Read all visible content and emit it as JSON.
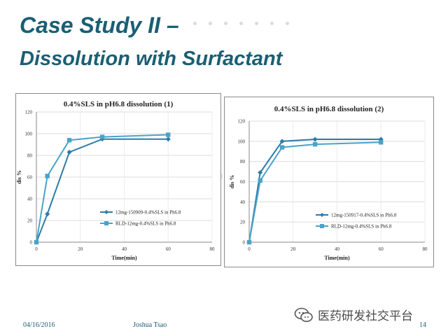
{
  "slide": {
    "title_line1": "Case Study II –",
    "title_line2": "Dissolution with Surfactant",
    "footer_date": "04/16/2016",
    "footer_author": "Joshua Tsao",
    "footer_page": "14",
    "watermark": "医药研发社交平台",
    "title_color": "#1a5f73"
  },
  "chart_data": [
    {
      "type": "line",
      "title": "0.4%SLS in pH6.8 dissolution (1)",
      "xlabel": "Time(min)",
      "ylabel": "dis %",
      "xlim": [
        0,
        80
      ],
      "ylim": [
        0,
        120
      ],
      "x_ticks": [
        0,
        20,
        40,
        60,
        80
      ],
      "y_ticks": [
        0,
        20,
        40,
        60,
        80,
        100,
        120
      ],
      "grid": true,
      "legend_position": "bottom-right",
      "series": [
        {
          "name": "12mg-150909-0.4%SLS in Ph6.8",
          "marker": "diamond",
          "color": "#2e7aa6",
          "x": [
            0,
            5,
            15,
            30,
            60
          ],
          "y": [
            0,
            26,
            83,
            95,
            95
          ]
        },
        {
          "name": "RLD-12mg-0.4%SLS in Ph6.8",
          "marker": "square",
          "color": "#4aa3c8",
          "x": [
            0,
            5,
            15,
            30,
            60
          ],
          "y": [
            0,
            61,
            94,
            97,
            99
          ]
        }
      ]
    },
    {
      "type": "line",
      "title": "0.4%SLS in pH6.8 dissolution (2)",
      "xlabel": "Time(min)",
      "ylabel": "dis %",
      "xlim": [
        0,
        80
      ],
      "ylim": [
        0,
        120
      ],
      "x_ticks": [
        0,
        20,
        40,
        60,
        80
      ],
      "y_ticks": [
        0,
        20,
        40,
        60,
        80,
        100,
        120
      ],
      "grid": true,
      "legend_position": "bottom-right",
      "series": [
        {
          "name": "12mg-150917-0.4%SLS in Ph6.8",
          "marker": "diamond",
          "color": "#2e7aa6",
          "x": [
            0,
            5,
            15,
            30,
            60
          ],
          "y": [
            0,
            69,
            100,
            102,
            102
          ]
        },
        {
          "name": "RLD-12mg-0.4%SLS in Ph6.8",
          "marker": "square",
          "color": "#4aa3c8",
          "x": [
            0,
            5,
            15,
            30,
            60
          ],
          "y": [
            0,
            61,
            94,
            97,
            99
          ]
        }
      ]
    }
  ]
}
